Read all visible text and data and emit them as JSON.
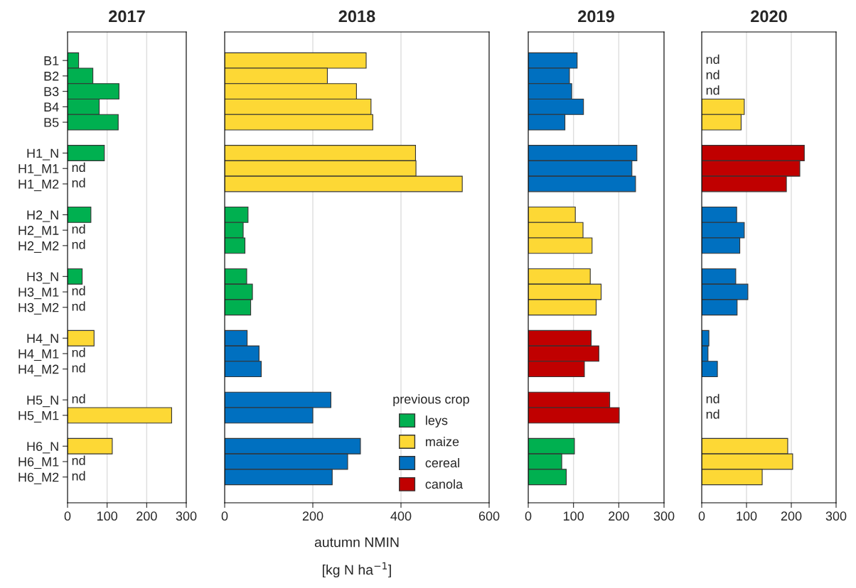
{
  "chart_data": [
    {
      "type": "bar",
      "orientation": "horizontal",
      "title": "2017",
      "categories": [
        "B1",
        "B2",
        "B3",
        "B4",
        "B5",
        null,
        "H1_N",
        "H1_M1",
        "H1_M2",
        null,
        "H2_N",
        "H2_M1",
        "H2_M2",
        null,
        "H3_N",
        "H3_M1",
        "H3_M2",
        null,
        "H4_N",
        "H4_M1",
        "H4_M2",
        null,
        "H5_N",
        "H5_M1",
        null,
        "H6_N",
        "H6_M1",
        "H6_M2"
      ],
      "series": [
        {
          "color": "#00b050",
          "values": [
            28,
            64,
            130,
            80,
            128,
            null,
            93,
            null,
            null,
            null,
            59,
            null,
            null,
            null,
            37,
            null,
            null,
            null,
            null,
            null,
            null,
            null,
            null,
            null,
            null,
            null,
            null,
            null
          ],
          "value_labels": [
            null,
            null,
            null,
            null,
            null,
            null,
            null,
            "nd",
            "nd",
            null,
            null,
            "nd",
            "nd",
            null,
            null,
            "nd",
            "nd",
            null,
            null,
            null,
            null,
            null,
            null,
            null,
            null,
            null,
            null,
            null
          ]
        },
        {
          "color": "#fdd835",
          "values": [
            null,
            null,
            null,
            null,
            null,
            null,
            null,
            null,
            null,
            null,
            null,
            null,
            null,
            null,
            null,
            null,
            null,
            null,
            67,
            null,
            null,
            null,
            null,
            263,
            null,
            113,
            null,
            null
          ],
          "value_labels": [
            null,
            null,
            null,
            null,
            null,
            null,
            null,
            null,
            null,
            null,
            null,
            null,
            null,
            null,
            null,
            null,
            null,
            null,
            null,
            "nd",
            "nd",
            null,
            "nd",
            null,
            null,
            null,
            "nd",
            "nd"
          ]
        }
      ],
      "xlim": [
        0,
        300
      ],
      "xticks": [
        0,
        100,
        200,
        300
      ],
      "grid": "x"
    },
    {
      "type": "bar",
      "orientation": "horizontal",
      "title": "2018",
      "xlabel": "autumn NMIN\n[kg N ha$^{−1}$]",
      "legend_title": "previous crop",
      "categories": [
        null,
        null,
        null,
        null,
        null,
        null,
        null,
        null,
        null,
        null,
        null,
        null,
        null,
        null,
        null,
        null,
        null,
        null,
        null,
        null,
        null,
        null,
        null,
        null,
        null,
        null,
        null,
        null
      ],
      "series": [
        {
          "name": "leys",
          "color": "#00b050",
          "values": [
            null,
            null,
            null,
            null,
            null,
            null,
            null,
            null,
            null,
            null,
            53,
            42,
            46,
            null,
            50,
            63,
            59,
            null,
            null,
            null,
            null,
            null,
            null,
            null,
            null,
            null,
            null,
            null
          ]
        },
        {
          "name": "maize",
          "color": "#fdd835",
          "values": [
            321,
            233,
            299,
            332,
            336,
            null,
            433,
            434,
            539,
            null,
            null,
            null,
            null,
            null,
            null,
            null,
            null,
            null,
            null,
            null,
            null,
            null,
            null,
            null,
            null,
            null,
            null,
            null
          ]
        },
        {
          "name": "cereal",
          "color": "#0070c0",
          "values": [
            null,
            null,
            null,
            null,
            null,
            null,
            null,
            null,
            null,
            null,
            null,
            null,
            null,
            null,
            null,
            null,
            null,
            null,
            51,
            78,
            83,
            null,
            241,
            200,
            null,
            308,
            279,
            244
          ]
        },
        {
          "name": "canola",
          "color": "#c00000",
          "values": [
            null,
            null,
            null,
            null,
            null,
            null,
            null,
            null,
            null,
            null,
            null,
            null,
            null,
            null,
            null,
            null,
            null,
            null,
            null,
            null,
            null,
            null,
            null,
            null,
            null,
            null,
            null,
            null
          ]
        }
      ],
      "xlim": [
        0,
        600
      ],
      "xticks": [
        0,
        200,
        400,
        600
      ],
      "grid": "x",
      "tick_labels": "x",
      "legend": "bottom right"
    },
    {
      "type": "bar",
      "orientation": "horizontal",
      "title": "2019",
      "categories": [
        null,
        null,
        null,
        null,
        null,
        null,
        null,
        null,
        null,
        null,
        null,
        null,
        null,
        null,
        null,
        null,
        null,
        null,
        null,
        null,
        null,
        null,
        null,
        null,
        null,
        null,
        null,
        null
      ],
      "series": [
        {
          "color": "#0070c0",
          "values": [
            108,
            91,
            96,
            122,
            81,
            null,
            240,
            229,
            237,
            null,
            null,
            null,
            null,
            null,
            null,
            null,
            null,
            null,
            null,
            null,
            null,
            null,
            null,
            null,
            null,
            null,
            null,
            null
          ]
        },
        {
          "color": "#fdd835",
          "values": [
            null,
            null,
            null,
            null,
            null,
            null,
            null,
            null,
            null,
            null,
            104,
            121,
            141,
            null,
            137,
            161,
            150,
            null,
            null,
            null,
            null,
            null,
            null,
            null,
            null,
            null,
            null,
            null
          ]
        },
        {
          "color": "#c00000",
          "values": [
            null,
            null,
            null,
            null,
            null,
            null,
            null,
            null,
            null,
            null,
            null,
            null,
            null,
            null,
            null,
            null,
            null,
            null,
            139,
            156,
            124,
            null,
            180,
            201,
            null,
            null,
            null,
            null
          ]
        },
        {
          "color": "#00b050",
          "values": [
            null,
            null,
            null,
            null,
            null,
            null,
            null,
            null,
            null,
            null,
            null,
            null,
            null,
            null,
            null,
            null,
            null,
            null,
            null,
            null,
            null,
            null,
            null,
            null,
            null,
            102,
            74,
            84
          ]
        }
      ],
      "xlim": [
        0,
        300
      ],
      "xticks": [
        0,
        100,
        200,
        300
      ],
      "grid": "x",
      "tick_labels": "x"
    },
    {
      "type": "bar",
      "orientation": "horizontal",
      "title": "2020",
      "categories": [
        null,
        null,
        null,
        null,
        null,
        null,
        null,
        null,
        null,
        null,
        null,
        null,
        null,
        null,
        null,
        null,
        null,
        null,
        null,
        null,
        null,
        null,
        null,
        null,
        null,
        null,
        null,
        null
      ],
      "series": [
        {
          "color": "#fdd835",
          "values": [
            null,
            null,
            null,
            95,
            88,
            null,
            null,
            null,
            null,
            null,
            null,
            null,
            null,
            null,
            null,
            null,
            null,
            null,
            null,
            null,
            null,
            null,
            null,
            null,
            null,
            192,
            203,
            135
          ],
          "value_labels": [
            "nd",
            "nd",
            "nd",
            null,
            null,
            null,
            null,
            null,
            null,
            null,
            null,
            null,
            null,
            null,
            null,
            null,
            null,
            null,
            null,
            null,
            null,
            null,
            "nd",
            "nd",
            null,
            null,
            null,
            null
          ]
        },
        {
          "color": "#c00000",
          "values": [
            null,
            null,
            null,
            null,
            null,
            null,
            229,
            219,
            189,
            null,
            null,
            null,
            null,
            null,
            null,
            null,
            null,
            null,
            null,
            null,
            null,
            null,
            null,
            null,
            null,
            null,
            null,
            null
          ]
        },
        {
          "color": "#0070c0",
          "values": [
            null,
            null,
            null,
            null,
            null,
            null,
            null,
            null,
            null,
            null,
            78,
            95,
            85,
            null,
            76,
            103,
            79,
            null,
            16,
            14,
            35,
            null,
            null,
            null,
            null,
            null,
            null,
            null
          ]
        }
      ],
      "xlim": [
        0,
        300
      ],
      "xticks": [
        0,
        100,
        200,
        300
      ],
      "grid": "x",
      "tick_labels": "x"
    }
  ]
}
